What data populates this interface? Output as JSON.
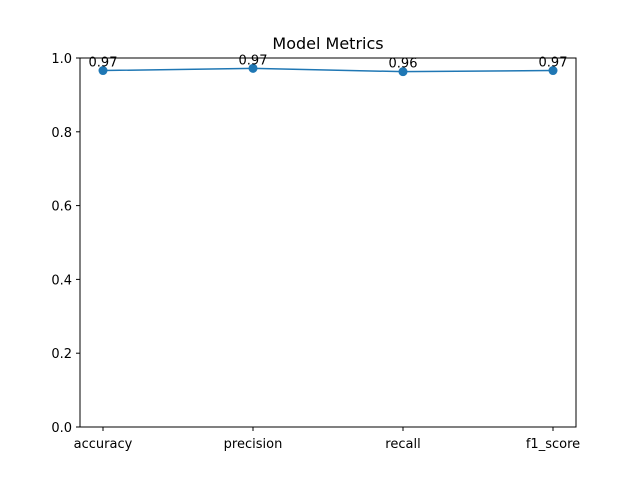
{
  "chart_data": {
    "type": "line",
    "title": "Model Metrics",
    "xlabel": "",
    "ylabel": "",
    "categories": [
      "accuracy",
      "precision",
      "recall",
      "f1_score"
    ],
    "series": [
      {
        "values": [
          0.966,
          0.972,
          0.963,
          0.966
        ],
        "labels": [
          "0.97",
          "0.97",
          "0.96",
          "0.97"
        ],
        "color": "#1f77b4",
        "marker": "circle"
      }
    ],
    "ylim": [
      0.0,
      1.0
    ],
    "yticks": [
      "0.0",
      "0.2",
      "0.4",
      "0.6",
      "0.8",
      "1.0"
    ],
    "grid": false,
    "legend": "none"
  }
}
